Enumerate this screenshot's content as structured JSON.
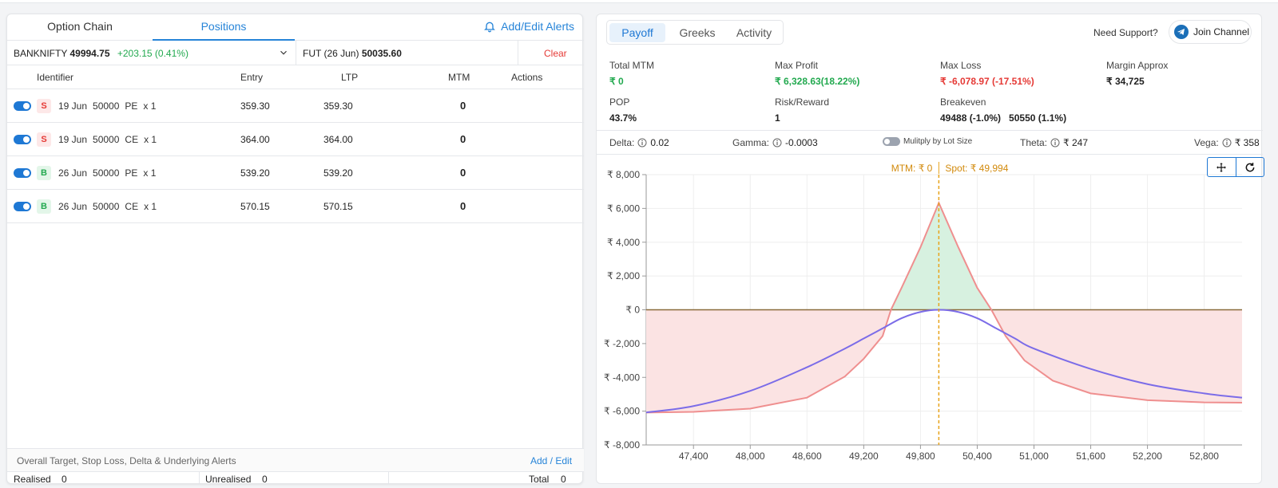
{
  "left": {
    "tabs": [
      "Option Chain",
      "Positions"
    ],
    "alerts_link": "Add/Edit Alerts",
    "underlying": {
      "symbol": "BANKNIFTY",
      "price": "49994.75",
      "change": "+203.15 (0.41%)",
      "fut_label": "FUT (26 Jun)",
      "fut_price": "50035.60",
      "clear": "Clear"
    },
    "columns": [
      "Identifier",
      "Entry",
      "LTP",
      "MTM",
      "Actions"
    ],
    "positions": [
      {
        "side": "S",
        "expiry": "19 Jun",
        "strike": "50000",
        "type": "PE",
        "qty": "x 1",
        "entry": "359.30",
        "ltp": "359.30",
        "mtm": "0"
      },
      {
        "side": "S",
        "expiry": "19 Jun",
        "strike": "50000",
        "type": "CE",
        "qty": "x 1",
        "entry": "364.00",
        "ltp": "364.00",
        "mtm": "0"
      },
      {
        "side": "B",
        "expiry": "26 Jun",
        "strike": "50000",
        "type": "PE",
        "qty": "x 1",
        "entry": "539.20",
        "ltp": "539.20",
        "mtm": "0"
      },
      {
        "side": "B",
        "expiry": "26 Jun",
        "strike": "50000",
        "type": "CE",
        "qty": "x 1",
        "entry": "570.15",
        "ltp": "570.15",
        "mtm": "0"
      }
    ],
    "overall_text": "Overall Target, Stop Loss, Delta & Underlying Alerts",
    "overall_link": "Add / Edit",
    "totals": {
      "realised_label": "Realised",
      "realised": "0",
      "unrealised_label": "Unrealised",
      "unrealised": "0",
      "total_label": "Total",
      "total": "0"
    }
  },
  "right": {
    "tabs": [
      "Payoff",
      "Greeks",
      "Activity"
    ],
    "support": "Need Support?",
    "join": "Join Channel",
    "stats": [
      {
        "label": "Total MTM",
        "value": "₹ 0",
        "color": "green"
      },
      {
        "label": "Max Profit",
        "value": "₹ 6,328.63(18.22%)",
        "color": "green"
      },
      {
        "label": "Max Loss",
        "value": "₹ -6,078.97 (-17.51%)",
        "color": "red"
      },
      {
        "label": "Margin Approx",
        "value": "₹ 34,725",
        "color": ""
      },
      {
        "label": "POP",
        "value": "43.7%",
        "color": ""
      },
      {
        "label": "Risk/Reward",
        "value": "1",
        "color": ""
      },
      {
        "label": "Breakeven",
        "value": "49488 (-1.0%)   50550 (1.1%)",
        "color": ""
      }
    ],
    "greeks": {
      "delta_label": "Delta:",
      "delta": "0.02",
      "gamma_label": "Gamma:",
      "gamma": "-0.0003",
      "multiply_label": "Mulitply by Lot Size",
      "theta_label": "Theta:",
      "theta": "₹ 247",
      "vega_label": "Vega:",
      "vega": "₹ 358"
    },
    "chart_annotation": {
      "mtm": "MTM: ₹ 0",
      "spot": "Spot: ₹ 49,994"
    }
  },
  "chart_data": {
    "type": "area",
    "x_ticks": [
      "47,400",
      "48,000",
      "48,600",
      "49,200",
      "49,800",
      "50,400",
      "51,000",
      "51,600",
      "52,200",
      "52,800"
    ],
    "x_tick_values": [
      47400,
      48000,
      48600,
      49200,
      49800,
      50400,
      51000,
      51600,
      52200,
      52800
    ],
    "y_ticks": [
      "₹ 8,000",
      "₹ 6,000",
      "₹ 4,000",
      "₹ 2,000",
      "₹ 0",
      "₹ -2,000",
      "₹ -4,000",
      "₹ -6,000",
      "₹ -8,000"
    ],
    "y_tick_values": [
      8000,
      6000,
      4000,
      2000,
      0,
      -2000,
      -4000,
      -6000,
      -8000
    ],
    "xlim": [
      46900,
      53200
    ],
    "ylim": [
      -8000,
      8000
    ],
    "spot": 49994,
    "grid": true,
    "colors": {
      "expiry": "#ef8f8f",
      "target": "#7b6ce8",
      "profit_fill": "#d7f1e0",
      "loss_fill": "#fbe3e3",
      "spot_line": "#e8a31b"
    },
    "series": [
      {
        "role": "expiry",
        "x": [
          46900,
          47400,
          48000,
          48600,
          49000,
          49200,
          49400,
          49488,
          49600,
          49800,
          49994,
          50200,
          50400,
          50550,
          50700,
          50900,
          51200,
          51600,
          52200,
          52800,
          53200
        ],
        "y": [
          -6080,
          -6040,
          -5850,
          -5200,
          -3950,
          -2900,
          -1550,
          0,
          1300,
          3700,
          6328,
          3700,
          1300,
          0,
          -1550,
          -3000,
          -4200,
          -4950,
          -5350,
          -5480,
          -5500
        ]
      },
      {
        "role": "target",
        "x": [
          46900,
          47400,
          48000,
          48600,
          49000,
          49200,
          49400,
          49600,
          49800,
          49994,
          50200,
          50400,
          50600,
          50800,
          51000,
          51600,
          52200,
          52800,
          53200
        ],
        "y": [
          -6080,
          -5700,
          -4800,
          -3400,
          -2300,
          -1700,
          -1100,
          -500,
          -130,
          0,
          -130,
          -500,
          -1100,
          -1700,
          -2300,
          -3500,
          -4400,
          -4950,
          -5200
        ]
      }
    ]
  }
}
